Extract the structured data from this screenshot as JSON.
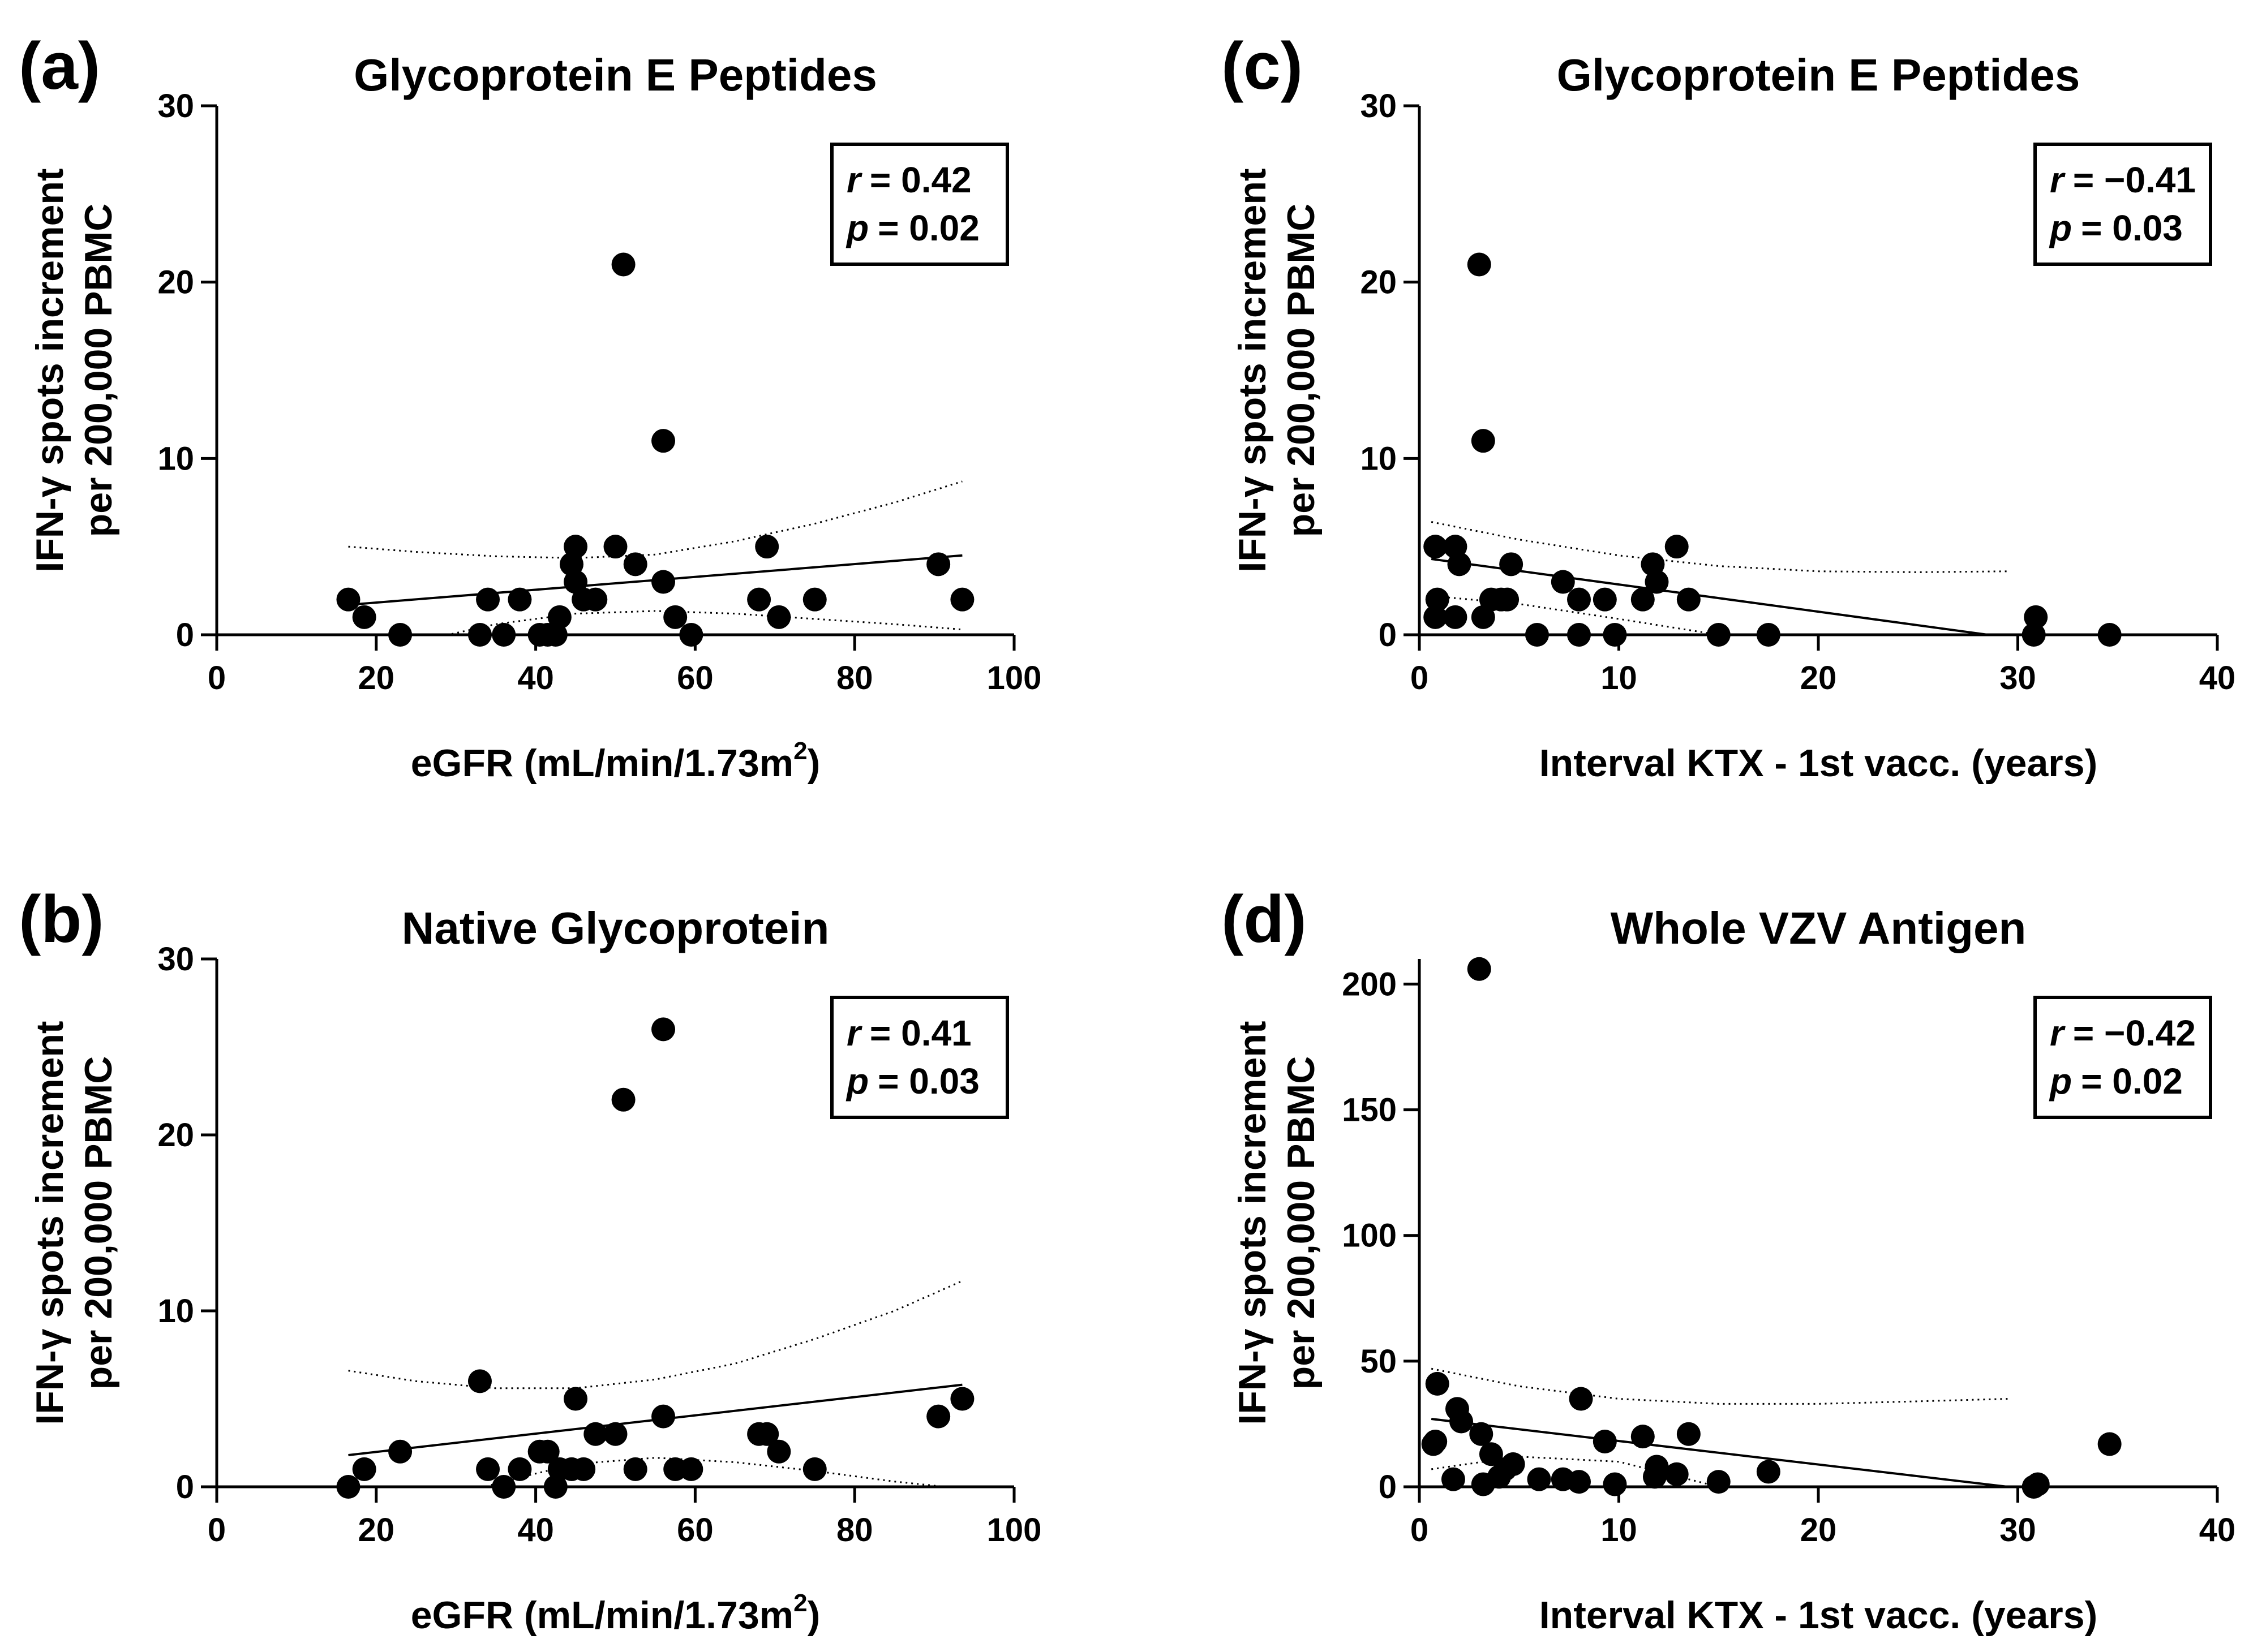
{
  "chart_data": [
    {
      "panel": "(a)",
      "type": "scatter",
      "title": "Glycoprotein E Peptides",
      "xlabel": "eGFR (mL/min/1.73m",
      "xlabel_sup": "2",
      "xlabel_end": ")",
      "ylabel_line1": "IFN-γ spots increment",
      "ylabel_line2": "per 200,000 PBMC",
      "xlim": [
        0,
        100
      ],
      "ylim": [
        0,
        30
      ],
      "xticks": [
        0,
        20,
        40,
        60,
        80,
        100
      ],
      "yticks": [
        0,
        10,
        20,
        30
      ],
      "stats": {
        "r_label": "r",
        "r_value": "= 0.42",
        "p_label": "p",
        "p_value": "= 0.02"
      },
      "points": [
        [
          16.5,
          2
        ],
        [
          18.5,
          1
        ],
        [
          23,
          0
        ],
        [
          33,
          0
        ],
        [
          34,
          2
        ],
        [
          36,
          0
        ],
        [
          38,
          2
        ],
        [
          40.5,
          0
        ],
        [
          41.5,
          0
        ],
        [
          42.5,
          0
        ],
        [
          43,
          1
        ],
        [
          44.5,
          4
        ],
        [
          45,
          5
        ],
        [
          45,
          3
        ],
        [
          46,
          2
        ],
        [
          47.5,
          2
        ],
        [
          50,
          5
        ],
        [
          51,
          21
        ],
        [
          52.5,
          4
        ],
        [
          56,
          11
        ],
        [
          56,
          3
        ],
        [
          57.5,
          1
        ],
        [
          59.5,
          0
        ],
        [
          68,
          2
        ],
        [
          69,
          5
        ],
        [
          70.5,
          1
        ],
        [
          75,
          2
        ],
        [
          90.5,
          4
        ],
        [
          93.5,
          2
        ]
      ],
      "regression": {
        "x": [
          16.5,
          93.5
        ],
        "y": [
          1.7,
          4.5
        ]
      },
      "ci_upper": {
        "x": [
          16.5,
          25,
          35,
          45,
          55,
          65,
          75,
          85,
          93.5
        ],
        "y": [
          5.0,
          4.7,
          4.45,
          4.35,
          4.55,
          5.3,
          6.3,
          7.5,
          8.7
        ]
      },
      "ci_lower": {
        "x": [
          16.5,
          25,
          35,
          45,
          55,
          65,
          75,
          85,
          93.5
        ],
        "y": [
          -1.6,
          -0.4,
          0.6,
          1.2,
          1.35,
          1.2,
          0.9,
          0.6,
          0.3
        ]
      }
    },
    {
      "panel": "(b)",
      "type": "scatter",
      "title": "Native Glycoprotein",
      "xlabel": "eGFR (mL/min/1.73m",
      "xlabel_sup": "2",
      "xlabel_end": ")",
      "ylabel_line1": "IFN-γ spots increment",
      "ylabel_line2": "per 200,000 PBMC",
      "xlim": [
        0,
        100
      ],
      "ylim": [
        0,
        30
      ],
      "xticks": [
        0,
        20,
        40,
        60,
        80,
        100
      ],
      "yticks": [
        0,
        10,
        20,
        30
      ],
      "stats": {
        "r_label": "r",
        "r_value": "= 0.41",
        "p_label": "p",
        "p_value": "= 0.03"
      },
      "points": [
        [
          16.5,
          0
        ],
        [
          18.5,
          1
        ],
        [
          23,
          2
        ],
        [
          33,
          6
        ],
        [
          34,
          1
        ],
        [
          36,
          0
        ],
        [
          38,
          1
        ],
        [
          40.5,
          2
        ],
        [
          41.5,
          2
        ],
        [
          42.5,
          0
        ],
        [
          43,
          1
        ],
        [
          44.5,
          1
        ],
        [
          45,
          5
        ],
        [
          46,
          1
        ],
        [
          47.5,
          3
        ],
        [
          50,
          3
        ],
        [
          51,
          22
        ],
        [
          52.5,
          1
        ],
        [
          56,
          26
        ],
        [
          56,
          4
        ],
        [
          57.5,
          1
        ],
        [
          59.5,
          1
        ],
        [
          68,
          3
        ],
        [
          69,
          3
        ],
        [
          70.5,
          2
        ],
        [
          75,
          1
        ],
        [
          90.5,
          4
        ],
        [
          93.5,
          5
        ]
      ],
      "regression": {
        "x": [
          16.5,
          93.5
        ],
        "y": [
          1.8,
          5.8
        ]
      },
      "ci_upper": {
        "x": [
          16.5,
          25,
          35,
          45,
          55,
          65,
          75,
          85,
          93.5
        ],
        "y": [
          6.6,
          6.0,
          5.6,
          5.6,
          6.1,
          7.0,
          8.4,
          10.0,
          11.7
        ]
      },
      "ci_lower": {
        "x": [
          16.5,
          25,
          35,
          45,
          55,
          65,
          75,
          85,
          93.5
        ],
        "y": [
          -3.0,
          -1.5,
          0.2,
          1.3,
          1.65,
          1.4,
          0.9,
          0.3,
          -0.1
        ]
      }
    },
    {
      "panel": "(c)",
      "type": "scatter",
      "title": "Glycoprotein E Peptides",
      "xlabel": "Interval KTX - 1st vacc. (years)",
      "xlabel_sup": "",
      "xlabel_end": "",
      "ylabel_line1": "IFN-γ spots increment",
      "ylabel_line2": "per 200,000 PBMC",
      "xlim": [
        0,
        40
      ],
      "ylim": [
        0,
        30
      ],
      "xticks": [
        0,
        10,
        20,
        30,
        40
      ],
      "yticks": [
        0,
        10,
        20,
        30
      ],
      "stats": {
        "r_label": "r",
        "r_value": "= −0.41",
        "p_label": "p",
        "p_value": "= 0.03"
      },
      "points": [
        [
          0.8,
          5
        ],
        [
          0.8,
          1
        ],
        [
          0.9,
          2
        ],
        [
          1.8,
          5
        ],
        [
          1.8,
          1
        ],
        [
          2,
          4
        ],
        [
          3,
          21
        ],
        [
          3.2,
          11
        ],
        [
          3.2,
          1
        ],
        [
          3.6,
          2
        ],
        [
          4.1,
          2
        ],
        [
          4.4,
          2
        ],
        [
          4.6,
          4
        ],
        [
          5.9,
          0
        ],
        [
          7.2,
          3
        ],
        [
          8,
          2
        ],
        [
          8,
          0
        ],
        [
          9.3,
          2
        ],
        [
          9.8,
          0
        ],
        [
          11.2,
          2
        ],
        [
          11.7,
          4
        ],
        [
          11.9,
          3
        ],
        [
          12.9,
          5
        ],
        [
          13.5,
          2
        ],
        [
          15,
          0
        ],
        [
          17.5,
          0
        ],
        [
          30.8,
          0
        ],
        [
          30.9,
          1
        ],
        [
          34.6,
          0
        ]
      ],
      "regression": {
        "x": [
          0.6,
          28.5
        ],
        "y": [
          4.3,
          0
        ]
      },
      "ci_upper": {
        "x": [
          0.6,
          5,
          10,
          15,
          20,
          25,
          29.5
        ],
        "y": [
          6.4,
          5.4,
          4.5,
          3.9,
          3.6,
          3.55,
          3.6
        ]
      },
      "ci_lower": {
        "x": [
          0.6,
          5,
          10,
          15
        ],
        "y": [
          2.2,
          1.75,
          0.9,
          0
        ]
      }
    },
    {
      "panel": "(d)",
      "type": "scatter",
      "title": "Whole VZV Antigen",
      "xlabel": "Interval KTX - 1st vacc. (years)",
      "xlabel_sup": "",
      "xlabel_end": "",
      "ylabel_line1": "IFN-γ spots increment",
      "ylabel_line2": "per 200,000 PBMC",
      "xlim": [
        0,
        40
      ],
      "ylim": [
        0,
        210
      ],
      "xticks": [
        0,
        10,
        20,
        30,
        40
      ],
      "yticks": [
        0,
        50,
        100,
        150,
        200
      ],
      "stats": {
        "r_label": "r",
        "r_value": "= −0.42",
        "p_label": "p",
        "p_value": "= 0.02"
      },
      "points": [
        [
          0.7,
          17
        ],
        [
          0.8,
          18
        ],
        [
          0.9,
          41
        ],
        [
          1.7,
          3
        ],
        [
          1.9,
          31
        ],
        [
          2.1,
          26
        ],
        [
          3,
          206
        ],
        [
          3.1,
          21
        ],
        [
          3.2,
          1
        ],
        [
          3.6,
          13
        ],
        [
          4,
          4
        ],
        [
          4.3,
          7
        ],
        [
          4.7,
          9
        ],
        [
          6,
          3
        ],
        [
          7.2,
          3
        ],
        [
          8,
          2
        ],
        [
          8.1,
          35
        ],
        [
          9.3,
          18
        ],
        [
          9.8,
          1
        ],
        [
          11.2,
          20
        ],
        [
          11.8,
          4
        ],
        [
          11.9,
          8
        ],
        [
          12.9,
          5
        ],
        [
          13.5,
          21
        ],
        [
          15,
          2
        ],
        [
          17.5,
          6
        ],
        [
          30.8,
          0
        ],
        [
          31,
          1
        ],
        [
          34.6,
          17
        ]
      ],
      "regression": {
        "x": [
          0.6,
          29.5
        ],
        "y": [
          27,
          0
        ]
      },
      "ci_upper": {
        "x": [
          0.6,
          5,
          10,
          15,
          20,
          25,
          29.5
        ],
        "y": [
          47,
          40,
          35,
          33,
          33,
          34,
          35
        ]
      },
      "ci_lower": {
        "x": [
          0.6,
          5,
          10,
          15
        ],
        "y": [
          7,
          12,
          10,
          0
        ]
      }
    }
  ]
}
